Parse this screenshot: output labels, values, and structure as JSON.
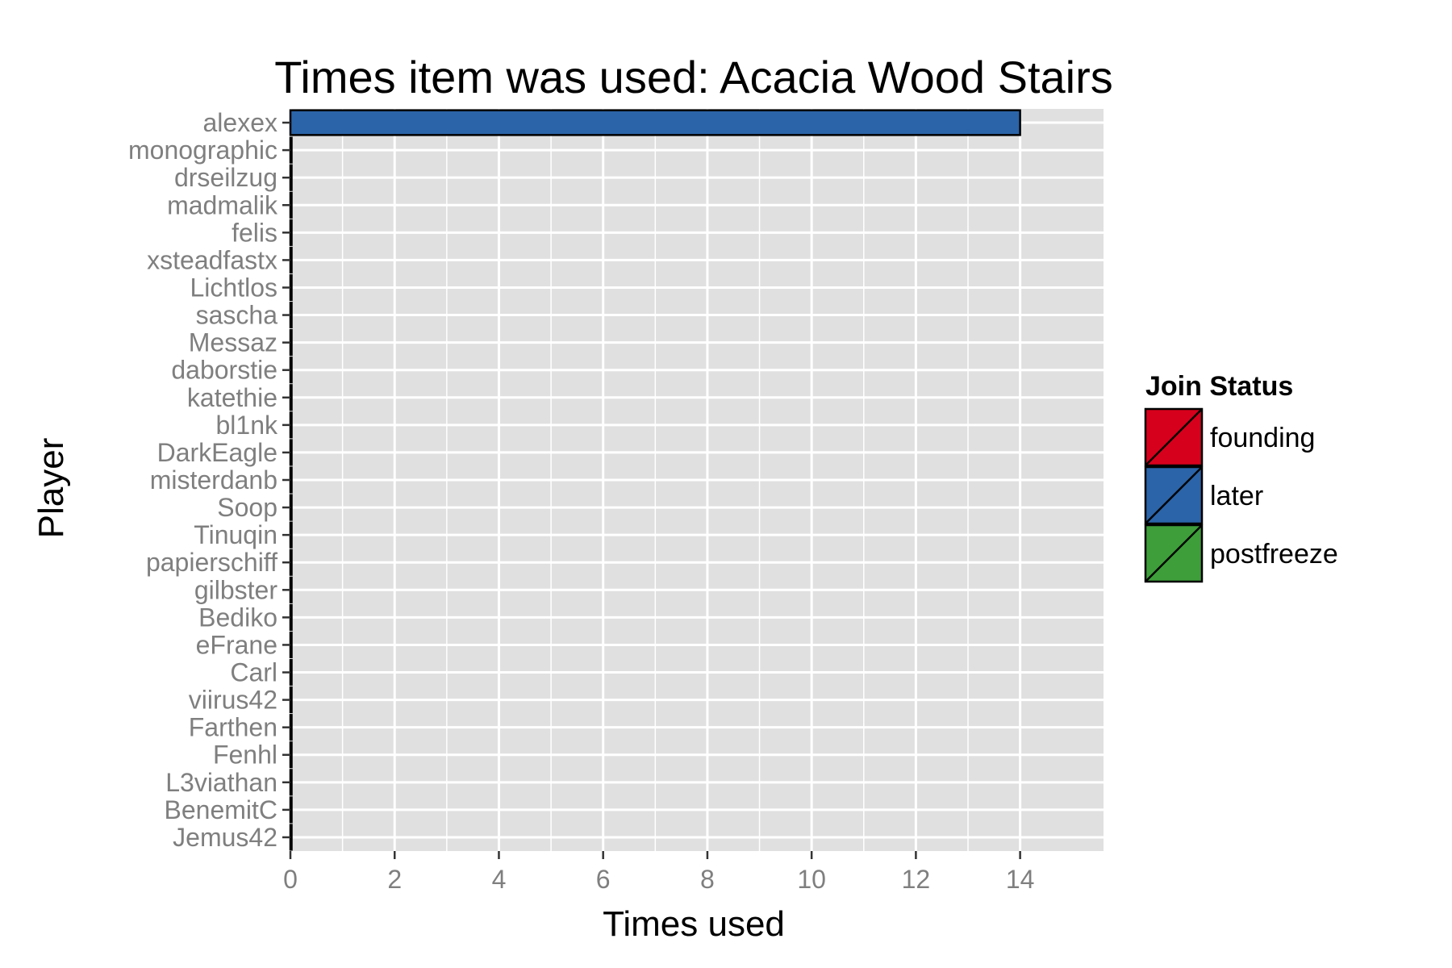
{
  "chart_data": {
    "type": "bar",
    "orientation": "horizontal",
    "title": "Times item was used: Acacia Wood Stairs",
    "xlabel": "Times used",
    "ylabel": "Player",
    "xlim": [
      0,
      15.6
    ],
    "xticks": [
      "0",
      "2",
      "4",
      "6",
      "8",
      "10",
      "12",
      "14"
    ],
    "grid": true,
    "categories": [
      "alexex",
      "monographic",
      "drseilzug",
      "madmalik",
      "felis",
      "xsteadfastx",
      "Lichtlos",
      "sascha",
      "Messaz",
      "daborstie",
      "katethie",
      "bl1nk",
      "DarkEagle",
      "misterdanb",
      "Soop",
      "Tinuqin",
      "papierschiff",
      "gilbster",
      "Bediko",
      "eFrane",
      "Carl",
      "viirus42",
      "Farthen",
      "Fenhl",
      "L3viathan",
      "BenemitC",
      "Jemus42"
    ],
    "values": [
      14,
      0,
      0,
      0,
      0,
      0,
      0,
      0,
      0,
      0,
      0,
      0,
      0,
      0,
      0,
      0,
      0,
      0,
      0,
      0,
      0,
      0,
      0,
      0,
      0,
      0,
      0
    ],
    "groups": [
      "later",
      "later",
      "later",
      "later",
      "later",
      "later",
      "later",
      "later",
      "later",
      "later",
      "later",
      "later",
      "later",
      "later",
      "later",
      "later",
      "later",
      "later",
      "later",
      "later",
      "later",
      "later",
      "later",
      "later",
      "later",
      "later",
      "later"
    ],
    "legend": {
      "title": "Join Status",
      "placement": "right",
      "entries": [
        {
          "label": "founding",
          "color": "#d7001c"
        },
        {
          "label": "later",
          "color": "#2b64a8"
        },
        {
          "label": "postfreeze",
          "color": "#3e9e3a"
        }
      ]
    },
    "colors": {
      "panel": "#e0e0e0",
      "grid": "#ffffff",
      "tick_text": "#7f7f7f",
      "bar_border": "#000000"
    }
  }
}
